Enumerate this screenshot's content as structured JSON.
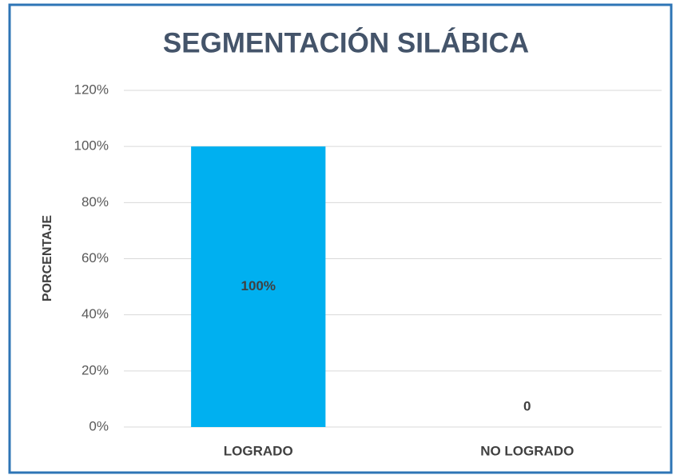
{
  "chart_data": {
    "type": "bar",
    "title": "SEGMENTACIÓN SILÁBICA",
    "y_label": "PORCENTAJE",
    "categories": [
      "LOGRADO",
      "NO LOGRADO"
    ],
    "values": [
      100,
      0
    ],
    "value_labels": [
      "100%",
      "0"
    ],
    "color": "#00b0f0",
    "ylim": [
      0,
      120
    ],
    "yticks": [
      {
        "value": 0,
        "label": "0%"
      },
      {
        "value": 20,
        "label": "20%"
      },
      {
        "value": 40,
        "label": "40%"
      },
      {
        "value": 60,
        "label": "60%"
      },
      {
        "value": 80,
        "label": "80%"
      },
      {
        "value": 100,
        "label": "100%"
      },
      {
        "value": 120,
        "label": "120%"
      }
    ],
    "grid": true
  }
}
